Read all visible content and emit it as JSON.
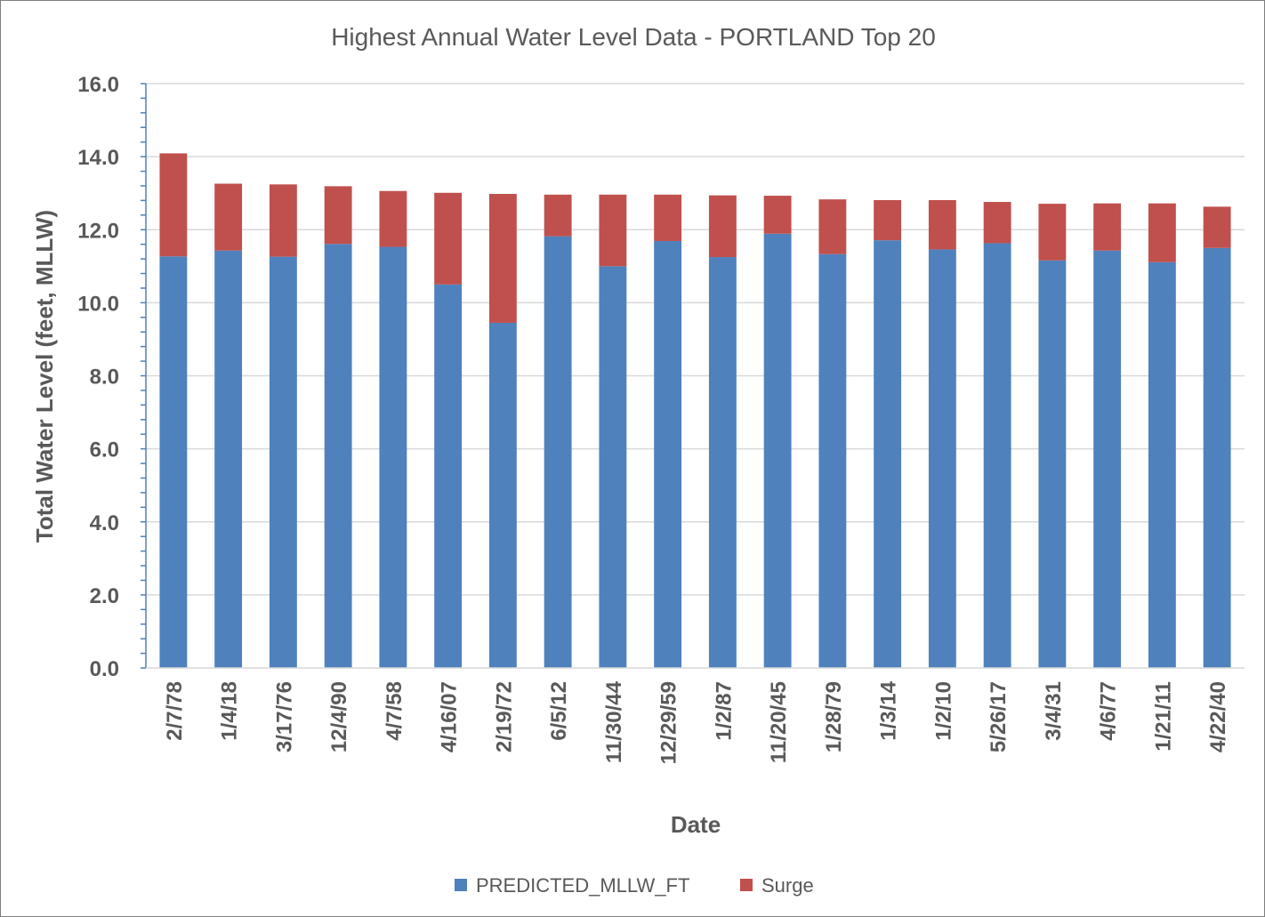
{
  "chart_data": {
    "type": "bar",
    "stacked": true,
    "title": "Highest Annual Water Level Data  - PORTLAND Top 20",
    "xlabel": "Date",
    "ylabel": "Total Water Level (feet, MLLW)",
    "ylim": [
      0,
      16
    ],
    "yticks": [
      "0.0",
      "2.0",
      "4.0",
      "6.0",
      "8.0",
      "10.0",
      "12.0",
      "14.0",
      "16.0"
    ],
    "grid": "horizontal",
    "legend_position": "bottom",
    "categories": [
      "2/7/78",
      "1/4/18",
      "3/17/76",
      "12/4/90",
      "4/7/58",
      "4/16/07",
      "2/19/72",
      "6/5/12",
      "11/30/44",
      "12/29/59",
      "1/2/87",
      "11/20/45",
      "1/28/79",
      "1/3/14",
      "1/2/10",
      "5/26/17",
      "3/4/31",
      "4/6/77",
      "1/21/11",
      "4/22/40"
    ],
    "series": [
      {
        "name": "PREDICTED_MLLW_FT",
        "color": "#4f81bd",
        "values": [
          11.27,
          11.43,
          11.26,
          11.61,
          11.53,
          10.5,
          9.45,
          11.82,
          11.0,
          11.69,
          11.25,
          11.89,
          11.33,
          11.71,
          11.46,
          11.63,
          11.16,
          11.43,
          11.11,
          11.5
        ]
      },
      {
        "name": "Surge",
        "color": "#c0504d",
        "values": [
          2.82,
          1.83,
          1.98,
          1.58,
          1.53,
          2.51,
          3.53,
          1.14,
          1.96,
          1.27,
          1.69,
          1.04,
          1.5,
          1.1,
          1.35,
          1.13,
          1.55,
          1.29,
          1.61,
          1.13
        ]
      }
    ]
  }
}
